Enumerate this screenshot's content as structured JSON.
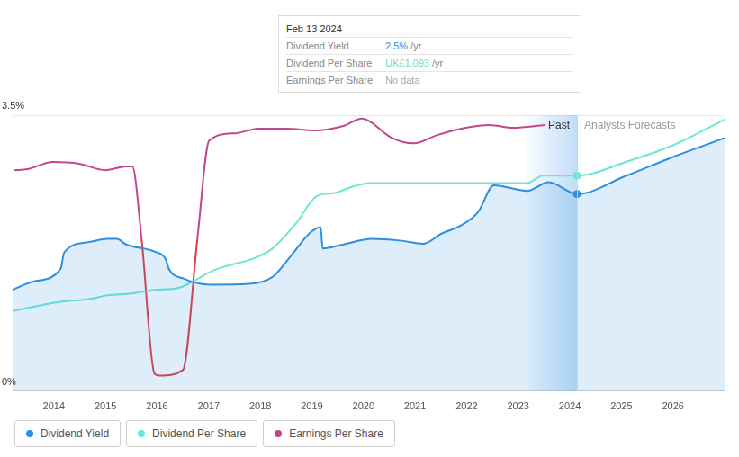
{
  "chart_data": {
    "type": "line",
    "xlim": [
      2013.2,
      2027
    ],
    "xticks": [
      2014,
      2015,
      2016,
      2017,
      2018,
      2019,
      2020,
      2021,
      2022,
      2023,
      2024,
      2025,
      2026
    ],
    "ylim": [
      0,
      3.5
    ],
    "yticks": [
      {
        "value": 0,
        "label": "0%"
      },
      {
        "value": 3.5,
        "label": "3.5%"
      }
    ],
    "y2lim": [
      0,
      1.4
    ],
    "grid": true,
    "legend": "bottom",
    "annotations": [
      "Past",
      "Analysts Forecasts"
    ],
    "tooltip": {
      "date": "Feb 13 2024",
      "x": 2024.14,
      "rows": [
        {
          "label": "Dividend Yield",
          "value": "2.5%",
          "unit": "/yr",
          "color": "#2e8ee0"
        },
        {
          "label": "Dividend Per Share",
          "value": "UK£1.093",
          "unit": "/yr",
          "color": "#5fe0cc"
        },
        {
          "label": "Earnings Per Share",
          "value": "No data",
          "color": "#aaaaaa"
        }
      ]
    },
    "series": [
      {
        "name": "Dividend Yield",
        "type": "area",
        "color": "#2e8ee0",
        "x": [
          2013.18,
          2013.6,
          2014.13,
          2014.2,
          2014.68,
          2015.04,
          2015.22,
          2015.4,
          2015.95,
          2016.17,
          2016.23,
          2016.5,
          2017.05,
          2017.78,
          2018.24,
          2018.6,
          2018.97,
          2019.17,
          2019.21,
          2019.61,
          2020.16,
          2020.7,
          2021.16,
          2021.52,
          2021.89,
          2022.22,
          2022.53,
          2023.17,
          2023.59,
          2024.14,
          2025.09,
          2026,
          2027
        ],
        "values": [
          1.28,
          1.39,
          1.55,
          1.76,
          1.89,
          1.93,
          1.93,
          1.86,
          1.77,
          1.67,
          1.55,
          1.43,
          1.35,
          1.36,
          1.45,
          1.72,
          2.01,
          2.08,
          1.81,
          1.86,
          1.93,
          1.91,
          1.87,
          2.0,
          2.1,
          2.27,
          2.61,
          2.54,
          2.65,
          2.5,
          2.73,
          2.97,
          3.21
        ]
      },
      {
        "name": "Dividend Per Share",
        "type": "line",
        "axis": "y2",
        "color": "#6ee6d4",
        "x": [
          2013.18,
          2014.13,
          2014.68,
          2015.04,
          2015.5,
          2015.95,
          2016.41,
          2016.69,
          2017.09,
          2017.42,
          2017.87,
          2018.24,
          2018.69,
          2019.1,
          2019.42,
          2019.79,
          2020.12,
          2023.17,
          2023.48,
          2024.14,
          2025.09,
          2026,
          2027
        ],
        "values": [
          0.406,
          0.453,
          0.467,
          0.486,
          0.495,
          0.514,
          0.523,
          0.556,
          0.612,
          0.64,
          0.673,
          0.724,
          0.85,
          0.99,
          1.004,
          1.037,
          1.056,
          1.056,
          1.093,
          1.093,
          1.163,
          1.247,
          1.378
        ]
      },
      {
        "name": "Earnings Per Share",
        "type": "line",
        "axis": "y2",
        "color": "#c2478a",
        "x": [
          2013.22,
          2013.49,
          2013.98,
          2014.49,
          2015.0,
          2015.4,
          2015.52,
          2015.7,
          2015.95,
          2016.05,
          2016.5,
          2016.78,
          2017.01,
          2017.51,
          2017.96,
          2018.51,
          2019.06,
          2019.61,
          2019.97,
          2020.12,
          2020.52,
          2020.98,
          2021.43,
          2021.98,
          2022.44,
          2022.9,
          2023.52
        ],
        "values": [
          1.121,
          1.126,
          1.163,
          1.154,
          1.121,
          1.14,
          1.14,
          0.771,
          0.089,
          0.079,
          0.107,
          0.771,
          1.271,
          1.308,
          1.331,
          1.331,
          1.322,
          1.345,
          1.383,
          1.369,
          1.289,
          1.257,
          1.299,
          1.336,
          1.35,
          1.336,
          1.35
        ],
        "colors": [
          "#c2478a",
          "#c2478a",
          "#c2478a",
          "#c2478a",
          "#c2478a",
          "#c2478a",
          "#c2478a",
          "#e03c3c",
          "#e03c3c",
          "#e03c3c",
          "#e03c3c",
          "#c2478a",
          "#c2478a",
          "#c2478a",
          "#c2478a",
          "#c2478a",
          "#c2478a",
          "#c2478a",
          "#c2478a",
          "#c2478a",
          "#c2478a",
          "#c2478a",
          "#c2478a",
          "#c2478a",
          "#c2478a",
          "#c2478a",
          "#c2478a"
        ]
      }
    ]
  }
}
